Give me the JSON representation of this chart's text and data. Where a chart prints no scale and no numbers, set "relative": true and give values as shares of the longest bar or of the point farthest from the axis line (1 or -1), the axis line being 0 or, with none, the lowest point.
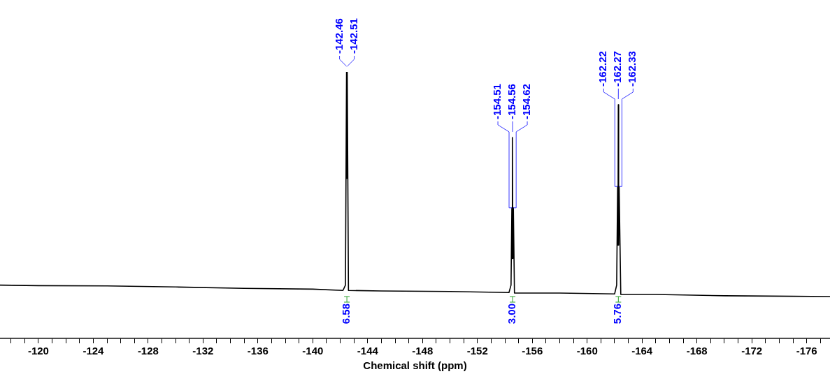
{
  "chart_data": {
    "type": "line",
    "xlabel": "Chemical shift (ppm)",
    "relative": true,
    "xlim": [
      -117.2,
      -177.7
    ],
    "xticks": [
      {
        "value": -118,
        "label": null
      },
      {
        "value": -119,
        "label": null
      },
      -120,
      {
        "value": -121,
        "label": null
      },
      {
        "value": -122,
        "label": null
      },
      {
        "value": -123,
        "label": null
      },
      -124,
      {
        "value": -125,
        "label": null
      },
      {
        "value": -126,
        "label": null
      },
      {
        "value": -127,
        "label": null
      },
      -128,
      {
        "value": -129,
        "label": null
      },
      {
        "value": -130,
        "label": null
      },
      {
        "value": -131,
        "label": null
      },
      -132,
      {
        "value": -133,
        "label": null
      },
      {
        "value": -134,
        "label": null
      },
      {
        "value": -135,
        "label": null
      },
      -136,
      {
        "value": -137,
        "label": null
      },
      {
        "value": -138,
        "label": null
      },
      {
        "value": -139,
        "label": null
      },
      -140,
      {
        "value": -141,
        "label": null
      },
      {
        "value": -142,
        "label": null
      },
      {
        "value": -143,
        "label": null
      },
      -144,
      {
        "value": -145,
        "label": null
      },
      {
        "value": -146,
        "label": null
      },
      {
        "value": -147,
        "label": null
      },
      -148,
      {
        "value": -149,
        "label": null
      },
      {
        "value": -150,
        "label": null
      },
      {
        "value": -151,
        "label": null
      },
      -152,
      {
        "value": -153,
        "label": null
      },
      {
        "value": -154,
        "label": null
      },
      {
        "value": -155,
        "label": null
      },
      -156,
      {
        "value": -157,
        "label": null
      },
      {
        "value": -158,
        "label": null
      },
      {
        "value": -159,
        "label": null
      },
      -160,
      {
        "value": -161,
        "label": null
      },
      {
        "value": -162,
        "label": null
      },
      {
        "value": -163,
        "label": null
      },
      -164,
      {
        "value": -165,
        "label": null
      },
      {
        "value": -166,
        "label": null
      },
      {
        "value": -167,
        "label": null
      },
      -168,
      {
        "value": -169,
        "label": null
      },
      {
        "value": -170,
        "label": null
      },
      {
        "value": -171,
        "label": null
      },
      -172,
      {
        "value": -173,
        "label": null
      },
      {
        "value": -174,
        "label": null
      },
      {
        "value": -175,
        "label": null
      },
      -176,
      {
        "value": -177,
        "label": null
      }
    ],
    "x": [
      -117.2,
      -120,
      -125,
      -130,
      -135,
      -140,
      -142.2,
      -142.38,
      -142.46,
      -142.485,
      -142.51,
      -142.6,
      -145,
      -150,
      -154.3,
      -154.45,
      -154.51,
      -154.535,
      -154.56,
      -154.585,
      -154.62,
      -154.7,
      -158,
      -162.0,
      -162.15,
      -162.22,
      -162.245,
      -162.27,
      -162.295,
      -162.33,
      -162.45,
      -165,
      -170,
      -175,
      -177.7
    ],
    "series": [
      {
        "color": "#000000",
        "values": [
          0.2,
          0.198,
          0.197,
          0.193,
          0.188,
          0.185,
          0.18,
          0.2,
          1.0,
          0.6,
          1.0,
          0.18,
          0.178,
          0.176,
          0.172,
          0.2,
          0.49,
          0.3,
          0.754,
          0.3,
          0.49,
          0.17,
          0.17,
          0.167,
          0.2,
          0.57,
          0.35,
          0.877,
          0.35,
          0.57,
          0.165,
          0.165,
          0.16,
          0.158,
          0.157
        ]
      }
    ],
    "marker": "none",
    "grid": false,
    "legend": false,
    "annotations": [
      {
        "text": "-142.46",
        "x": -142.46,
        "y": 1.0
      },
      {
        "text": "-142.51",
        "x": -142.51,
        "y": 1.0
      },
      {
        "text": "-154.51",
        "x": -154.51,
        "y": 0.49
      },
      {
        "text": "-154.56",
        "x": -154.56,
        "y": 0.754
      },
      {
        "text": "-154.62",
        "x": -154.62,
        "y": 0.49
      },
      {
        "text": "-162.22",
        "x": -162.22,
        "y": 0.57
      },
      {
        "text": "-162.27",
        "x": -162.27,
        "y": 0.877
      },
      {
        "text": "-162.33",
        "x": -162.33,
        "y": 0.57
      },
      "6.58",
      "3.00",
      "5.76"
    ]
  }
}
